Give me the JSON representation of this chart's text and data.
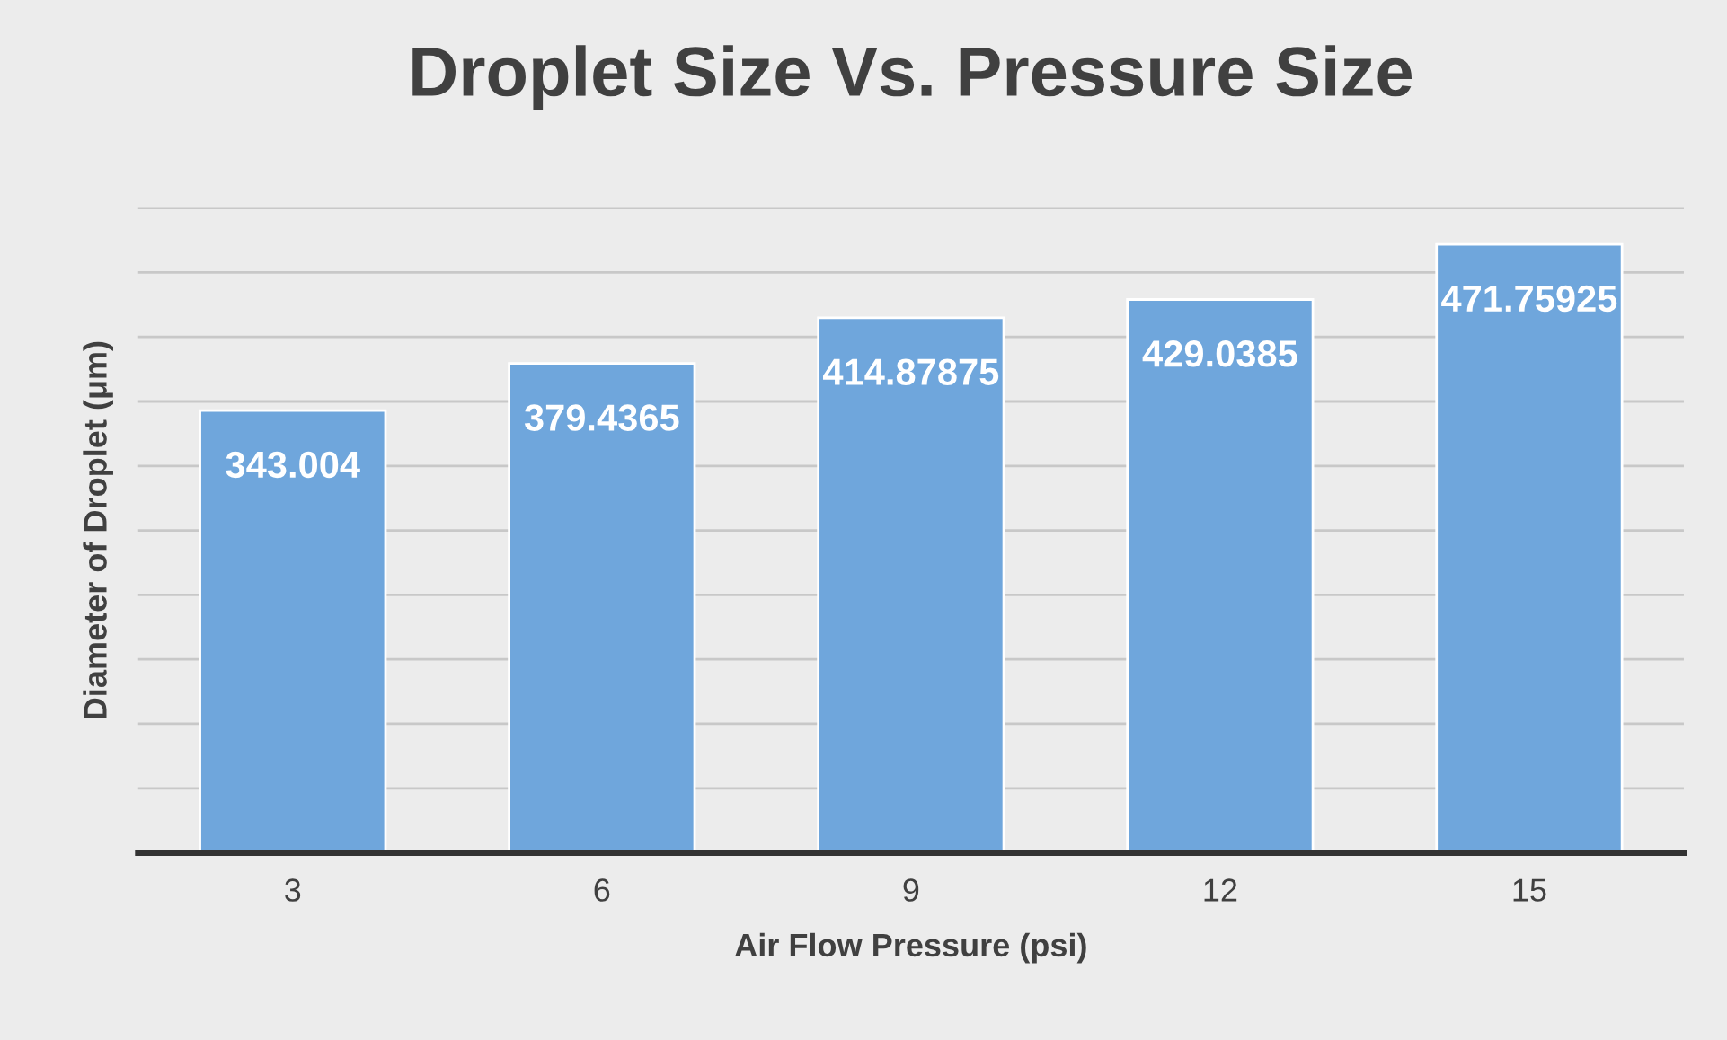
{
  "chart_data": {
    "type": "bar",
    "title": "Droplet Size Vs. Pressure Size",
    "xlabel": "Air Flow Pressure (psi)",
    "ylabel": "Diameter of Droplet (μm)",
    "categories": [
      "3",
      "6",
      "9",
      "12",
      "15"
    ],
    "values": [
      343.004,
      379.4365,
      414.87875,
      429.0385,
      471.75925
    ],
    "color": "#6fa6dc",
    "ylim": [
      0,
      500
    ],
    "yticks": [
      {
        "value": 0,
        "label": null
      },
      {
        "value": 50,
        "label": null
      },
      {
        "value": 100,
        "label": null
      },
      {
        "value": 150,
        "label": null
      },
      {
        "value": 200,
        "label": null
      },
      {
        "value": 250,
        "label": null
      },
      {
        "value": 300,
        "label": null
      },
      {
        "value": 350,
        "label": null
      },
      {
        "value": 400,
        "label": null
      },
      {
        "value": 450,
        "label": null
      },
      {
        "value": 500,
        "label": null
      }
    ],
    "grid": "y",
    "tick_labels": "x",
    "data_labels": true
  }
}
